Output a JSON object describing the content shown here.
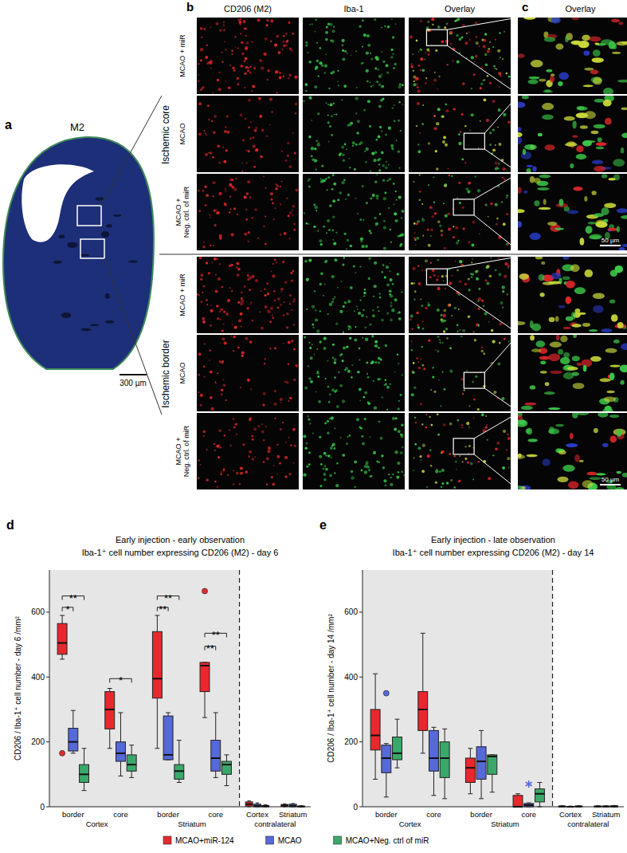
{
  "panels": {
    "a": {
      "label": "a",
      "title": "M2",
      "scale_bar": "300 µm"
    },
    "b": {
      "label": "b",
      "columns": [
        "CD206 (M2)",
        "Iba-1",
        "Overlay"
      ],
      "groups": [
        {
          "label": "Ischemic core",
          "rows": [
            "MCAO + miR",
            "MCAO",
            "MCAO + Neg. ctrl. of miR"
          ],
          "scale_bar": "50 µm"
        },
        {
          "label": "Ischemic border",
          "rows": [
            "MCAO + miR",
            "MCAO",
            "MCAO + Neg. ctrl. of miR"
          ],
          "scale_bar": "50 µm"
        }
      ]
    },
    "c": {
      "label": "c",
      "column": "Overlay"
    }
  },
  "chart_data": [
    {
      "type": "box",
      "panel_label": "d",
      "title": "Early injection - early observation",
      "subtitle": "Iba-1⁺ cell number expressing CD206 (M2) - day 6",
      "y_label": "CD206 / Iba-1⁺ cell number - day 6 /mm²",
      "categories": [
        "border",
        "core",
        "border",
        "core",
        "Cortex",
        "Striatum"
      ],
      "x_groups": [
        {
          "label": "Cortex",
          "size": 2
        },
        {
          "label": "Striatum",
          "size": 2
        },
        {
          "label": "contralateral",
          "size": 2
        }
      ],
      "ylim": [
        0,
        730
      ],
      "yticks": [
        0,
        200,
        400,
        600
      ],
      "legend": "bottom",
      "series": [
        {
          "name": "MCAO+miR-124",
          "color": "#e8282e",
          "values": [
            {
              "min": 455,
              "q1": 470,
              "median": 505,
              "q3": 565,
              "max": 590,
              "outliers": [
                165
              ]
            },
            {
              "min": 180,
              "q1": 240,
              "median": 300,
              "q3": 355,
              "max": 365
            },
            {
              "min": 180,
              "q1": 335,
              "median": 395,
              "q3": 540,
              "max": 590
            },
            {
              "min": 275,
              "q1": 355,
              "median": 435,
              "q3": 445,
              "max": 445,
              "outliers": [
                665
              ]
            },
            {
              "min": 0,
              "q1": 2,
              "median": 8,
              "q3": 15,
              "max": 18
            },
            {
              "min": 0,
              "q1": 1,
              "median": 4,
              "q3": 7,
              "max": 9
            }
          ]
        },
        {
          "name": "MCAO",
          "color": "#5569d8",
          "values": [
            {
              "min": 165,
              "q1": 172,
              "median": 200,
              "q3": 242,
              "max": 297
            },
            {
              "min": 95,
              "q1": 140,
              "median": 165,
              "q3": 200,
              "max": 290
            },
            {
              "min": 145,
              "q1": 145,
              "median": 160,
              "q3": 280,
              "max": 290
            },
            {
              "min": 90,
              "q1": 110,
              "median": 150,
              "q3": 205,
              "max": 290
            },
            {
              "min": 0,
              "q1": 0,
              "median": 3,
              "q3": 8,
              "max": 12
            },
            {
              "min": 0,
              "q1": 0,
              "median": 3,
              "q3": 8,
              "max": 10
            }
          ]
        },
        {
          "name": "MCAO+Neg. ctrl of miR",
          "color": "#3aa86a",
          "values": [
            {
              "min": 50,
              "q1": 75,
              "median": 100,
              "q3": 130,
              "max": 180
            },
            {
              "min": 90,
              "q1": 110,
              "median": 130,
              "q3": 160,
              "max": 190
            },
            {
              "min": 75,
              "q1": 85,
              "median": 110,
              "q3": 130,
              "max": 205
            },
            {
              "min": 65,
              "q1": 100,
              "median": 130,
              "q3": 140,
              "max": 160
            },
            {
              "min": 0,
              "q1": 0,
              "median": 2,
              "q3": 4,
              "max": 6
            },
            {
              "min": 0,
              "q1": 0,
              "median": 1,
              "q3": 2,
              "max": 3
            }
          ]
        }
      ],
      "annotations": [
        {
          "text": "*",
          "category": 0,
          "series": [
            0,
            1
          ],
          "y": 615
        },
        {
          "text": "**",
          "category": 0,
          "series": [
            0,
            2
          ],
          "y": 650
        },
        {
          "text": "*",
          "category": 1,
          "series": [
            0,
            2
          ],
          "y": 395
        },
        {
          "text": "**",
          "category": 2,
          "series": [
            0,
            1
          ],
          "y": 615
        },
        {
          "text": "**",
          "category": 2,
          "series": [
            0,
            2
          ],
          "y": 650
        },
        {
          "text": "**",
          "category": 3,
          "series": [
            0,
            1
          ],
          "y": 495
        },
        {
          "text": "**",
          "category": 3,
          "series": [
            0,
            2
          ],
          "y": 535
        }
      ]
    },
    {
      "type": "box",
      "panel_label": "e",
      "title": "Early injection - late observation",
      "subtitle": "Iba-1⁺ cell number expressing CD206 (M2) - day 14",
      "y_label": "CD206 / Iba-1⁺ cell number - day 14 /mm²",
      "categories": [
        "border",
        "core",
        "border",
        "core",
        "Cortex",
        "Striatum"
      ],
      "x_groups": [
        {
          "label": "Cortex",
          "size": 2
        },
        {
          "label": "Striatum",
          "size": 2
        },
        {
          "label": "contralateral",
          "size": 2
        }
      ],
      "ylim": [
        0,
        730
      ],
      "yticks": [
        0,
        200,
        400,
        600
      ],
      "series": [
        {
          "name": "MCAO+miR-124",
          "color": "#e8282e",
          "values": [
            {
              "min": 85,
              "q1": 175,
              "median": 220,
              "q3": 300,
              "max": 410
            },
            {
              "min": 165,
              "q1": 235,
              "median": 300,
              "q3": 355,
              "max": 535
            },
            {
              "min": 40,
              "q1": 75,
              "median": 120,
              "q3": 150,
              "max": 180
            },
            {
              "min": 0,
              "q1": 0,
              "median": 0,
              "q3": 35,
              "max": 40
            },
            {
              "min": 0,
              "q1": 0,
              "median": 1,
              "q3": 2,
              "max": 3
            },
            {
              "min": 0,
              "q1": 0,
              "median": 1,
              "q3": 2,
              "max": 3
            }
          ]
        },
        {
          "name": "MCAO",
          "color": "#5569d8",
          "values": [
            {
              "min": 30,
              "q1": 105,
              "median": 150,
              "q3": 190,
              "max": 195,
              "outliers": [
                350
              ]
            },
            {
              "min": 35,
              "q1": 110,
              "median": 150,
              "q3": 235,
              "max": 245
            },
            {
              "min": 25,
              "q1": 85,
              "median": 140,
              "q3": 185,
              "max": 235
            },
            {
              "min": 0,
              "q1": 0,
              "median": 5,
              "q3": 10,
              "max": 12,
              "extremes": [
                70
              ]
            },
            {
              "min": 0,
              "q1": 0,
              "median": 0,
              "q3": 1,
              "max": 2
            },
            {
              "min": 0,
              "q1": 0,
              "median": 1,
              "q3": 2,
              "max": 3
            }
          ]
        },
        {
          "name": "MCAO+Neg. ctrl of miR",
          "color": "#3aa86a",
          "values": [
            {
              "min": 120,
              "q1": 145,
              "median": 165,
              "q3": 215,
              "max": 270
            },
            {
              "min": 25,
              "q1": 90,
              "median": 150,
              "q3": 200,
              "max": 240
            },
            {
              "min": 45,
              "q1": 100,
              "median": 155,
              "q3": 160,
              "max": 160
            },
            {
              "min": 0,
              "q1": 15,
              "median": 40,
              "q3": 55,
              "max": 75
            },
            {
              "min": 0,
              "q1": 0,
              "median": 1,
              "q3": 2,
              "max": 3
            },
            {
              "min": 0,
              "q1": 0,
              "median": 1,
              "q3": 3,
              "max": 4
            }
          ]
        }
      ]
    }
  ]
}
